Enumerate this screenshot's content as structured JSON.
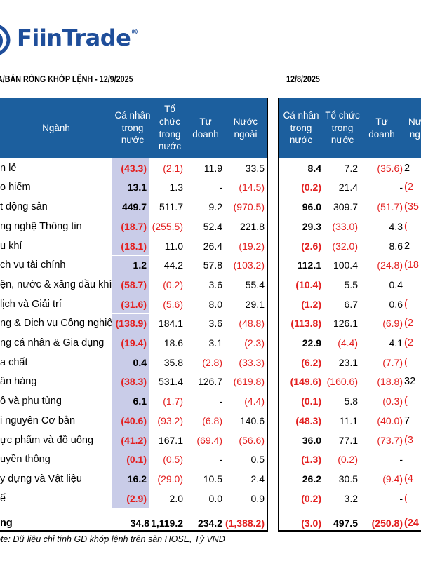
{
  "brand": {
    "name": "FiinTrade",
    "registered": "®",
    "color": "#1f4e9a"
  },
  "left_title": "A/BÁN RÒNG KHỚP LỆNH - 12/9/2025",
  "right_title": "12/8/2025",
  "colors": {
    "header_bg": "#1c5f9e",
    "highlight": "#c9cce8",
    "negative": "#e31f1f"
  },
  "left_headers": {
    "sector": "Ngành",
    "individual": "Cá nhân\ntrong nước",
    "institution": "Tổ chức\ntrong\nnước",
    "proprietary": "Tự doanh",
    "foreign": "Nước\nngoài"
  },
  "right_headers": {
    "individual": "Cá nhân\ntrong nước",
    "institution": "Tổ chức\ntrong\nnước",
    "proprietary": "Tự doanh",
    "foreign": "Nư\nng"
  },
  "rows": [
    {
      "name": "n lẻ",
      "left": [
        "(43.3)",
        "(2.1)",
        "11.9",
        "33.5"
      ],
      "right": [
        "8.4",
        "7.2",
        "(35.6)",
        "2"
      ]
    },
    {
      "name": "o hiểm",
      "left": [
        "13.1",
        "1.3",
        "-",
        "(14.5)"
      ],
      "right": [
        "(0.2)",
        "21.4",
        "-",
        "(2"
      ]
    },
    {
      "name": "t động sản",
      "left": [
        "449.7",
        "511.7",
        "9.2",
        "(970.5)"
      ],
      "right": [
        "96.0",
        "309.7",
        "(51.7)",
        "(35"
      ]
    },
    {
      "name": "ng nghệ Thông tin",
      "left": [
        "(18.7)",
        "(255.5)",
        "52.4",
        "221.8"
      ],
      "right": [
        "29.3",
        "(33.0)",
        "4.3",
        "("
      ]
    },
    {
      "name": "u khí",
      "left": [
        "(18.1)",
        "11.0",
        "26.4",
        "(19.2)"
      ],
      "right": [
        "(2.6)",
        "(32.0)",
        "8.6",
        "2"
      ]
    },
    {
      "name": "ch vụ tài chính",
      "left": [
        "1.2",
        "44.2",
        "57.8",
        "(103.2)"
      ],
      "right": [
        "112.1",
        "100.4",
        "(24.8)",
        "(18"
      ]
    },
    {
      "name": "ện, nước & xăng dầu khí đốt",
      "left": [
        "(58.7)",
        "(0.2)",
        "3.6",
        "55.4"
      ],
      "right": [
        "(10.4)",
        "5.5",
        "0.4",
        ""
      ]
    },
    {
      "name": "lịch và Giải trí",
      "left": [
        "(31.6)",
        "(5.6)",
        "8.0",
        "29.1"
      ],
      "right": [
        "(1.2)",
        "6.7",
        "0.6",
        "("
      ]
    },
    {
      "name": "ng & Dịch vụ Công nghiệp",
      "left": [
        "(138.9)",
        "184.1",
        "3.6",
        "(48.8)"
      ],
      "right": [
        "(113.8)",
        "126.1",
        "(6.9)",
        "(2"
      ]
    },
    {
      "name": "ng cá nhân & Gia dụng",
      "left": [
        "(19.4)",
        "18.6",
        "3.1",
        "(2.3)"
      ],
      "right": [
        "22.9",
        "(4.4)",
        "4.1",
        "(2"
      ]
    },
    {
      "name": "a chất",
      "left": [
        "0.4",
        "35.8",
        "(2.8)",
        "(33.3)"
      ],
      "right": [
        "(6.2)",
        "23.1",
        "(7.7)",
        "("
      ]
    },
    {
      "name": "ân hàng",
      "left": [
        "(38.3)",
        "531.4",
        "126.7",
        "(619.8)"
      ],
      "right": [
        "(149.6)",
        "(160.6)",
        "(18.8)",
        "32"
      ]
    },
    {
      "name": "ô và phụ tùng",
      "left": [
        "6.1",
        "(1.7)",
        "-",
        "(4.4)"
      ],
      "right": [
        "(0.1)",
        "5.8",
        "(0.3)",
        "("
      ]
    },
    {
      "name": "i nguyên Cơ bản",
      "left": [
        "(40.6)",
        "(93.2)",
        "(6.8)",
        "140.6"
      ],
      "right": [
        "(48.3)",
        "11.1",
        "(40.0)",
        "7"
      ]
    },
    {
      "name": "ực phẩm và đồ uống",
      "left": [
        "(41.2)",
        "167.1",
        "(69.4)",
        "(56.6)"
      ],
      "right": [
        "36.0",
        "77.1",
        "(73.7)",
        "(3"
      ]
    },
    {
      "name": "uyền thông",
      "left": [
        "(0.1)",
        "(0.5)",
        "-",
        "0.5"
      ],
      "right": [
        "(1.3)",
        "(0.2)",
        "-",
        ""
      ]
    },
    {
      "name": "y dựng và Vật liệu",
      "left": [
        "16.2",
        "(29.0)",
        "10.5",
        "2.4"
      ],
      "right": [
        "26.2",
        "30.5",
        "(9.4)",
        "(4"
      ]
    },
    {
      "name": "ế",
      "left": [
        "(2.9)",
        "2.0",
        "0.0",
        "0.9"
      ],
      "right": [
        "(0.2)",
        "3.2",
        "-",
        "("
      ]
    }
  ],
  "total": {
    "name": "ng",
    "left": [
      "34.8",
      "1,119.2",
      "234.2",
      "(1,388.2)"
    ],
    "right": [
      "(3.0)",
      "497.5",
      "(250.8)",
      "(24"
    ]
  },
  "footnote": "ote: Dữ liệu chỉ tính GD khớp lệnh trên sàn HOSE, Tỷ VND"
}
